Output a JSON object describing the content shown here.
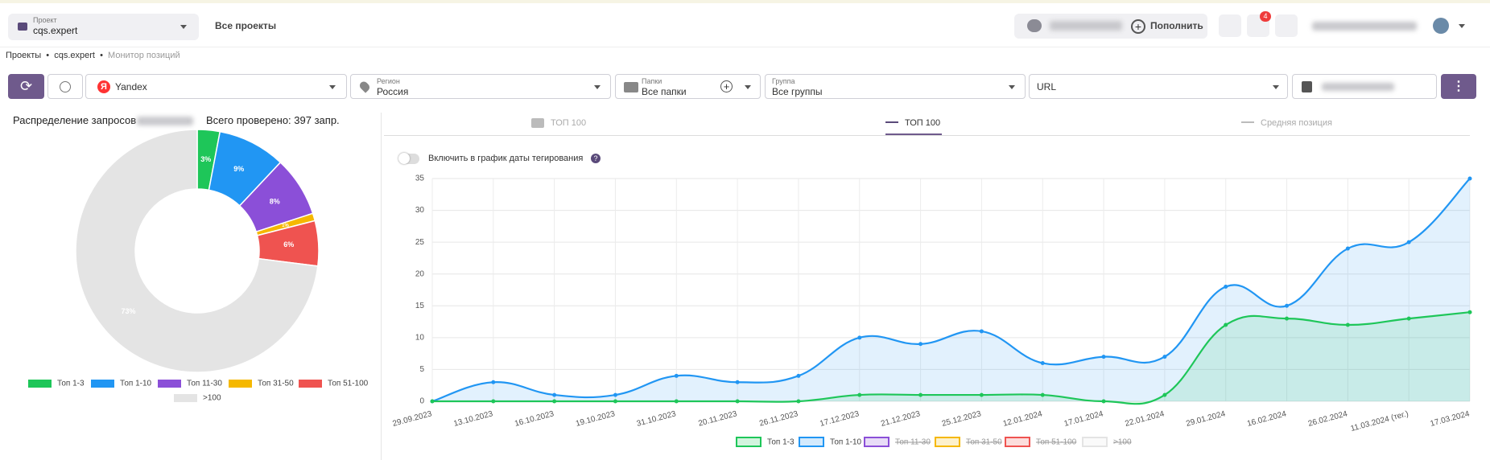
{
  "header": {
    "project_label": "Проект",
    "project": "cqs.expert",
    "all_projects": "Все проекты",
    "top_up": "Пополнить",
    "notifications": "4"
  },
  "breadcrumbs": [
    "Проекты",
    "cqs.expert",
    "Монитор позиций"
  ],
  "filters": {
    "engine": "Yandex",
    "region_label": "Регион",
    "region": "Россия",
    "folders_label": "Папки",
    "folders": "Все папки",
    "group_label": "Группа",
    "group": "Все группы",
    "url": "URL"
  },
  "tabs": [
    "ТОП 100",
    "ТОП 100",
    "Средняя позиция"
  ],
  "toggle_label": "Включить в график даты тегирования",
  "chart_data": [
    {
      "type": "pie",
      "title": "Распределение запросов",
      "subtitle": "Всего проверено: 397 запр.",
      "categories": [
        "Топ 1-3",
        "Топ 1-10",
        "Топ 11-30",
        "Топ 31-50",
        "Топ 51-100",
        ">100"
      ],
      "values": [
        3,
        9,
        8,
        1,
        6,
        73
      ],
      "value_labels": [
        "3%",
        "9%",
        "8%",
        "1%",
        "6%",
        "73%"
      ],
      "colors": [
        "#1ec659",
        "#2196f3",
        "#8b4fd8",
        "#f5b800",
        "#ef5350",
        "#e4e4e4"
      ]
    },
    {
      "type": "line",
      "categories": [
        "29.09.2023",
        "13.10.2023",
        "16.10.2023",
        "19.10.2023",
        "31.10.2023",
        "20.11.2023",
        "26.11.2023",
        "17.12.2023",
        "21.12.2023",
        "25.12.2023",
        "12.01.2024",
        "17.01.2024",
        "22.01.2024",
        "29.01.2024",
        "16.02.2024",
        "26.02.2024",
        "11.03.2024 (тег.)",
        "17.03.2024"
      ],
      "series": [
        {
          "name": "Топ 1-3",
          "color": "#1ec659",
          "values": [
            0,
            0,
            0,
            0,
            0,
            0,
            0,
            1,
            1,
            1,
            1,
            0,
            1,
            12,
            13,
            12,
            13,
            14
          ]
        },
        {
          "name": "Топ 1-10",
          "color": "#2196f3",
          "values": [
            0,
            3,
            1,
            1,
            4,
            3,
            4,
            10,
            9,
            11,
            6,
            7,
            7,
            18,
            15,
            24,
            25,
            35
          ]
        }
      ],
      "hidden_series": [
        {
          "name": "Топ 11-30",
          "color": "#8b4fd8"
        },
        {
          "name": "Топ 31-50",
          "color": "#f5b800"
        },
        {
          "name": "Топ 51-100",
          "color": "#ef5350"
        },
        {
          "name": ">100",
          "color": "#e4e4e4"
        }
      ],
      "ylim": [
        0,
        35
      ],
      "yticks": [
        0,
        5,
        10,
        15,
        20,
        25,
        30,
        35
      ],
      "grid": true
    }
  ]
}
